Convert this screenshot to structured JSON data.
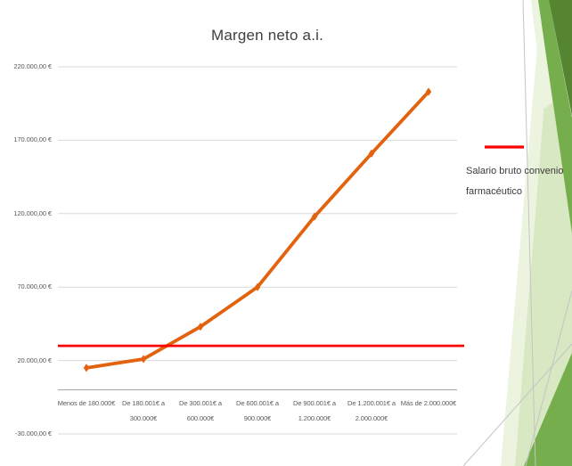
{
  "chart_data": {
    "type": "line",
    "title": "Margen neto a.i.",
    "categories": [
      "Menos de 180.000€",
      "De 180.001€ a 300.000€",
      "De 300.001€ a 600.000€",
      "De 600.001€ a 900.000€",
      "De 900.001€ a 1.200.000€",
      "De 1.200.001€ a 2.000.000€",
      "Más de 2.000.000€"
    ],
    "category_lines": [
      [
        "Menos de 180.000€"
      ],
      [
        "De 180.001€ a",
        "300.000€"
      ],
      [
        "De 300.001€ a",
        "600.000€"
      ],
      [
        "De 600.001€ a",
        "900.000€"
      ],
      [
        "De 900.001€ a",
        "1.200.000€"
      ],
      [
        "De 1.200.001€ a",
        "2.000.000€"
      ],
      [
        "Más de 2.000.000€"
      ]
    ],
    "series": [
      {
        "name": "Margen neto a.i.",
        "color_key": "series_orange",
        "marker": "diamond",
        "values": [
          15000,
          21000,
          43000,
          70000,
          118000,
          161000,
          203000
        ]
      },
      {
        "name": "Salario bruto convenio farmacéutico",
        "color_key": "reference_red",
        "style": "reference_line",
        "values": [
          30000,
          30000,
          30000,
          30000,
          30000,
          30000,
          30000
        ]
      }
    ],
    "y_ticks": [
      {
        "value": 220000,
        "label": "220.000,00 €"
      },
      {
        "value": 170000,
        "label": "170.000,00 €"
      },
      {
        "value": 120000,
        "label": "120.000,00 €"
      },
      {
        "value": 70000,
        "label": "70.000,00 €"
      },
      {
        "value": 20000,
        "label": "20.000,00 €"
      },
      {
        "value": -30000,
        "label": "-30.000,00 €"
      }
    ],
    "ylim": [
      -30000,
      220000
    ],
    "grid": "horizontal",
    "legend_position": "right",
    "legend_visible_entries": [
      "Salario bruto convenio farmacéutico"
    ]
  },
  "legend": {
    "label": "Salario bruto convenio farmacéutico",
    "line1": "Salario bruto convenio",
    "line2": "farmacéutico"
  },
  "colors": {
    "series_orange": "#e2620e",
    "reference_red": "#fe0000",
    "grid_gray": "#d9d9d9",
    "axis_gray": "#a6a6a6",
    "label_gray": "#595959",
    "title_gray": "#3f3f3f",
    "green_dark": "#568531",
    "green_medium": "#76ad4d",
    "green_light": "#d8e8c2",
    "green_pale": "#ecf4e0",
    "thin_line_gray": "#c4c4c4"
  }
}
